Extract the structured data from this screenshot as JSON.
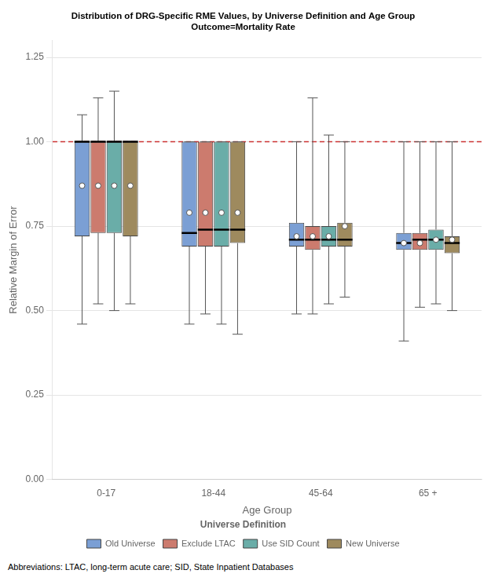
{
  "chart_data": {
    "type": "box",
    "title": [
      "Distribution of DRG-Specific RME Values, by Universe Definition and Age Group",
      "Outcome=Mortality Rate"
    ],
    "xlabel": "Age Group",
    "ylabel": "Relative Margin of Error",
    "categories": [
      "0-17",
      "18-44",
      "45-64",
      "65 +"
    ],
    "series": [
      {
        "name": "Old Universe",
        "color": "#7b9fd4",
        "values": [
          {
            "whislo": 0.46,
            "q1": 0.72,
            "med": 1.0,
            "q3": 1.0,
            "whishi": 1.08,
            "mean": 0.87
          },
          {
            "whislo": 0.46,
            "q1": 0.69,
            "med": 0.73,
            "q3": 1.0,
            "whishi": 1.0,
            "mean": 0.79
          },
          {
            "whislo": 0.49,
            "q1": 0.69,
            "med": 0.71,
            "q3": 0.76,
            "whishi": 1.0,
            "mean": 0.72
          },
          {
            "whislo": 0.41,
            "q1": 0.68,
            "med": 0.7,
            "q3": 0.73,
            "whishi": 1.0,
            "mean": 0.7
          }
        ]
      },
      {
        "name": "Exclude LTAC",
        "color": "#cc7b6e",
        "values": [
          {
            "whislo": 0.52,
            "q1": 0.73,
            "med": 1.0,
            "q3": 1.0,
            "whishi": 1.13,
            "mean": 0.87
          },
          {
            "whislo": 0.49,
            "q1": 0.69,
            "med": 0.74,
            "q3": 1.0,
            "whishi": 1.0,
            "mean": 0.79
          },
          {
            "whislo": 0.49,
            "q1": 0.68,
            "med": 0.71,
            "q3": 0.75,
            "whishi": 1.13,
            "mean": 0.72
          },
          {
            "whislo": 0.51,
            "q1": 0.68,
            "med": 0.71,
            "q3": 0.73,
            "whishi": 1.0,
            "mean": 0.7
          }
        ]
      },
      {
        "name": "Use SID Count",
        "color": "#6aada8",
        "values": [
          {
            "whislo": 0.5,
            "q1": 0.73,
            "med": 1.0,
            "q3": 1.0,
            "whishi": 1.15,
            "mean": 0.87
          },
          {
            "whislo": 0.46,
            "q1": 0.69,
            "med": 0.74,
            "q3": 1.0,
            "whishi": 1.0,
            "mean": 0.79
          },
          {
            "whislo": 0.52,
            "q1": 0.69,
            "med": 0.71,
            "q3": 0.75,
            "whishi": 1.02,
            "mean": 0.72
          },
          {
            "whislo": 0.52,
            "q1": 0.68,
            "med": 0.71,
            "q3": 0.74,
            "whishi": 1.0,
            "mean": 0.71
          }
        ]
      },
      {
        "name": "New Universe",
        "color": "#9e8a5e",
        "values": [
          {
            "whislo": 0.52,
            "q1": 0.72,
            "med": 1.0,
            "q3": 1.0,
            "whishi": 1.0,
            "mean": 0.87
          },
          {
            "whislo": 0.43,
            "q1": 0.7,
            "med": 0.74,
            "q3": 1.0,
            "whishi": 1.0,
            "mean": 0.79
          },
          {
            "whislo": 0.54,
            "q1": 0.69,
            "med": 0.71,
            "q3": 0.76,
            "whishi": 1.0,
            "mean": 0.75
          },
          {
            "whislo": 0.5,
            "q1": 0.67,
            "med": 0.7,
            "q3": 0.72,
            "whishi": 1.0,
            "mean": 0.71
          }
        ]
      }
    ],
    "ylim": [
      0.0,
      1.3
    ],
    "yticks": [
      {
        "value": 0.0,
        "label": "0.00"
      },
      {
        "value": 0.25,
        "label": "0.25"
      },
      {
        "value": 0.5,
        "label": "0.50"
      },
      {
        "value": 0.75,
        "label": "0.75"
      },
      {
        "value": 1.0,
        "label": "1.00"
      },
      {
        "value": 1.25,
        "label": "1.25"
      }
    ],
    "grid": true,
    "legend": "bottom",
    "legend_title": "Universe Definition",
    "ref_line": {
      "value": 1.0,
      "color": "#cc3333"
    },
    "footnote": "Abbreviations: LTAC, long-term acute care; SID, State Inpatient Databases"
  }
}
